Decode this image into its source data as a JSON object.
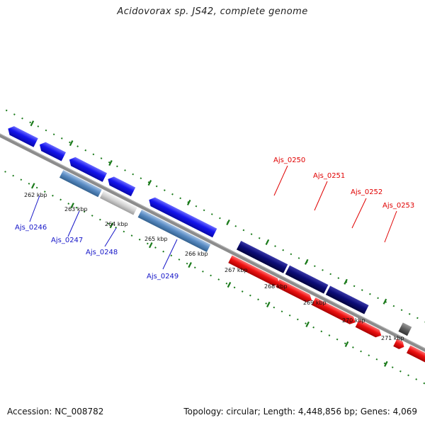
{
  "title": "Acidovorax sp. JS42, complete genome",
  "footer": {
    "accession": "Accession: NC_008782",
    "topology": "Topology: circular; Length: 4,448,856 bp; Genes: 4,069"
  },
  "colors": {
    "backbone": "#8c8c8c",
    "tick": "#1a7a1a",
    "reverse_gene": "#1414ee",
    "forward_gene": "#ee1111",
    "reverse_label": "#1515c8",
    "forward_label": "#e00000"
  },
  "kbp_labels": [
    "262 kbp",
    "263 kbp",
    "264 kbp",
    "265 kbp",
    "266 kbp",
    "267 kbp",
    "268 kbp",
    "269 kbp",
    "270 kbp",
    "271 kbp"
  ],
  "gene_labels": {
    "reverse": [
      "Ajs_0246",
      "Ajs_0247",
      "Ajs_0248",
      "Ajs_0249"
    ],
    "forward": [
      "Ajs_0250",
      "Ajs_0251",
      "Ajs_0252",
      "Ajs_0253"
    ]
  }
}
